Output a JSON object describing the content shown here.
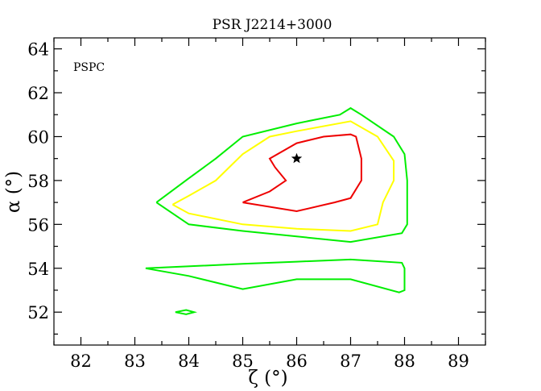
{
  "chart_data": {
    "type": "line",
    "title": "PSR J2214+3000",
    "annotation": "PSPC",
    "xlabel": "ζ (°)",
    "ylabel": "α (°)",
    "xlim": [
      81.5,
      89.5
    ],
    "ylim": [
      50.5,
      64.5
    ],
    "xticks": [
      82,
      83,
      84,
      85,
      86,
      87,
      88,
      89
    ],
    "yticks": [
      52,
      54,
      56,
      58,
      60,
      62,
      64
    ],
    "grid": false,
    "marker": {
      "symbol": "star",
      "x": 86.0,
      "y": 59.0,
      "color": "#000000"
    },
    "series": [
      {
        "color": "#00ee00",
        "segments": [
          [
            [
              83.4,
              57.0
            ],
            [
              84.0,
              58.1
            ],
            [
              84.5,
              59.0
            ],
            [
              85.0,
              60.0
            ],
            [
              86.0,
              60.6
            ],
            [
              86.8,
              61.0
            ],
            [
              87.0,
              61.3
            ],
            [
              87.2,
              61.0
            ],
            [
              87.8,
              60.0
            ],
            [
              88.0,
              59.2
            ],
            [
              88.05,
              58.0
            ],
            [
              88.05,
              57.0
            ],
            [
              88.05,
              56.0
            ],
            [
              87.95,
              55.6
            ],
            [
              87.0,
              55.2
            ],
            [
              86.0,
              55.45
            ],
            [
              85.0,
              55.7
            ],
            [
              84.0,
              56.0
            ],
            [
              83.4,
              57.0
            ]
          ],
          [
            [
              83.2,
              54.0
            ],
            [
              85.0,
              54.2
            ],
            [
              86.0,
              54.3
            ],
            [
              87.0,
              54.4
            ],
            [
              87.95,
              54.25
            ],
            [
              88.0,
              54.0
            ],
            [
              88.0,
              53.0
            ],
            [
              87.9,
              52.9
            ],
            [
              87.0,
              53.5
            ],
            [
              86.0,
              53.5
            ],
            [
              85.0,
              53.05
            ],
            [
              84.0,
              53.65
            ],
            [
              83.2,
              54.0
            ]
          ],
          [
            [
              83.75,
              52.0
            ],
            [
              83.95,
              52.1
            ],
            [
              84.1,
              52.0
            ],
            [
              83.95,
              51.9
            ],
            [
              83.75,
              52.0
            ]
          ]
        ]
      },
      {
        "color": "#ffff00",
        "segments": [
          [
            [
              83.7,
              56.9
            ],
            [
              84.0,
              57.3
            ],
            [
              84.5,
              58.0
            ],
            [
              85.0,
              59.2
            ],
            [
              85.5,
              60.0
            ],
            [
              86.0,
              60.25
            ],
            [
              87.0,
              60.7
            ],
            [
              87.5,
              60.0
            ],
            [
              87.8,
              58.9
            ],
            [
              87.8,
              58.0
            ],
            [
              87.6,
              57.0
            ],
            [
              87.5,
              56.0
            ],
            [
              87.0,
              55.7
            ],
            [
              86.0,
              55.8
            ],
            [
              85.0,
              56.0
            ],
            [
              84.0,
              56.5
            ],
            [
              83.7,
              56.9
            ]
          ]
        ]
      },
      {
        "color": "#ee0000",
        "segments": [
          [
            [
              85.0,
              57.0
            ],
            [
              85.5,
              57.5
            ],
            [
              85.8,
              58.0
            ],
            [
              85.6,
              58.6
            ],
            [
              85.5,
              59.0
            ],
            [
              86.0,
              59.7
            ],
            [
              86.5,
              60.0
            ],
            [
              87.0,
              60.1
            ],
            [
              87.1,
              60.0
            ],
            [
              87.2,
              59.0
            ],
            [
              87.2,
              58.0
            ],
            [
              87.0,
              57.2
            ],
            [
              86.7,
              57.0
            ],
            [
              86.0,
              56.6
            ],
            [
              85.0,
              57.0
            ]
          ]
        ]
      }
    ]
  }
}
